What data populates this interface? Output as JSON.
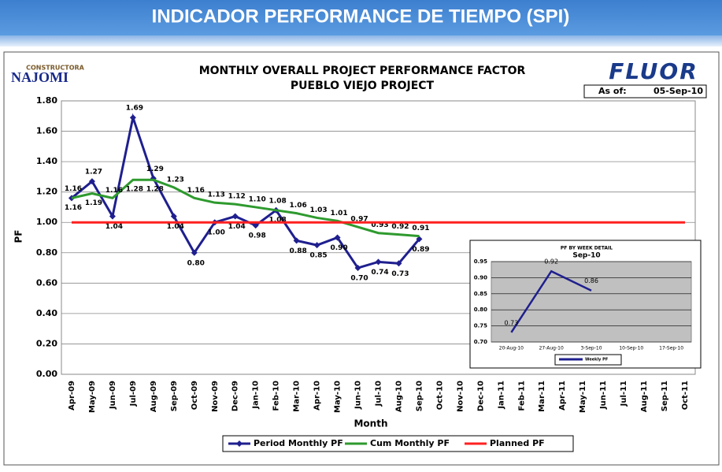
{
  "header": {
    "title": "INDICADOR PERFORMANCE DE TIEMPO (SPI)"
  },
  "branding": {
    "left_logo_top": "CONSTRUCTORA",
    "left_logo": "NAJOMI",
    "right_logo": "FLUOR",
    "as_of_label": "As of:",
    "as_of_date": "05-Sep-10"
  },
  "chart_data": [
    {
      "type": "line",
      "title": "MONTHLY OVERALL PROJECT PERFORMANCE FACTOR",
      "subtitle": "PUEBLO VIEJO PROJECT",
      "x_label": "Month",
      "y_label": "PF",
      "categories": [
        "Apr-09",
        "May-09",
        "Jun-09",
        "Jul-09",
        "Aug-09",
        "Sep-09",
        "Oct-09",
        "Nov-09",
        "Dec-09",
        "Jan-10",
        "Feb-10",
        "Mar-10",
        "Apr-10",
        "May-10",
        "Jun-10",
        "Jul-10",
        "Aug-10",
        "Sep-10",
        "Oct-10",
        "Nov-10",
        "Dec-10",
        "Jan-11",
        "Feb-11",
        "Mar-11",
        "Apr-11",
        "May-11",
        "Jun-11",
        "Jul-11",
        "Aug-11",
        "Sep-11",
        "Oct-11"
      ],
      "series": [
        {
          "name": "Period Monthly PF",
          "color": "#1f1f8f",
          "marker": true,
          "values": [
            1.16,
            1.27,
            1.04,
            1.69,
            1.29,
            1.04,
            0.8,
            1.0,
            1.04,
            0.98,
            1.08,
            0.88,
            0.85,
            0.9,
            0.7,
            0.74,
            0.73,
            0.89,
            null,
            null,
            null,
            null,
            null,
            null,
            null,
            null,
            null,
            null,
            null,
            null,
            null
          ],
          "value_labels": [
            "1.16",
            "1.27",
            "1.04",
            "1.69",
            "1.29",
            "1.04",
            "0.80",
            "1.00",
            "1.04",
            "0.98",
            "1.08",
            "0.88",
            "0.85",
            "0.90",
            "0.70",
            "0.74",
            "0.73",
            "0.89",
            null,
            null,
            null,
            null,
            null,
            null,
            null,
            null,
            null,
            null,
            null,
            null,
            null
          ]
        },
        {
          "name": "Cum Monthly PF",
          "color": "#2e9a2e",
          "marker": false,
          "values": [
            1.16,
            1.19,
            1.16,
            1.28,
            1.28,
            1.23,
            1.16,
            1.13,
            1.12,
            1.1,
            1.08,
            1.06,
            1.03,
            1.01,
            0.97,
            0.93,
            0.92,
            0.91,
            null,
            null,
            null,
            null,
            null,
            null,
            null,
            null,
            null,
            null,
            null,
            null,
            null
          ],
          "value_labels": [
            "1.16",
            "1.19",
            "1.16",
            "1.28",
            "1.28",
            "1.23",
            "1.16",
            "1.13",
            "1.12",
            "1.10",
            "1.08",
            "1.06",
            "1.03",
            "1.01",
            "0.97",
            "0.93",
            "0.92",
            "0.91",
            null,
            null,
            null,
            null,
            null,
            null,
            null,
            null,
            null,
            null,
            null,
            null,
            null
          ]
        },
        {
          "name": "Planned PF",
          "color": "#ff2020",
          "marker": false,
          "values": [
            1,
            1,
            1,
            1,
            1,
            1,
            1,
            1,
            1,
            1,
            1,
            1,
            1,
            1,
            1,
            1,
            1,
            1,
            1,
            1,
            1,
            1,
            1,
            1,
            1,
            1,
            1,
            1,
            1,
            1,
            1
          ]
        }
      ],
      "ylim": [
        0,
        1.8
      ],
      "yticks": [
        {
          "value": 0,
          "label": "0.00"
        },
        {
          "value": 0.2,
          "label": "0.20"
        },
        {
          "value": 0.4,
          "label": "0.40"
        },
        {
          "value": 0.6,
          "label": "0.60"
        },
        {
          "value": 0.8,
          "label": "0.80"
        },
        {
          "value": 1,
          "label": "1.00"
        },
        {
          "value": 1.2,
          "label": "1.20"
        },
        {
          "value": 1.4,
          "label": "1.40"
        },
        {
          "value": 1.6,
          "label": "1.60"
        },
        {
          "value": 1.8,
          "label": "1.80"
        }
      ],
      "grid": true,
      "legend": "bottom"
    },
    {
      "type": "line",
      "title": "PF BY WEEK DETAIL",
      "subtitle": "Sep-10",
      "categories": [
        "20-Aug-10",
        "27-Aug-10",
        "3-Sep-10",
        "10-Sep-10",
        "17-Sep-10"
      ],
      "series": [
        {
          "name": "Weekly PF",
          "color": "#1f1f8f",
          "values": [
            0.73,
            0.92,
            0.86,
            null,
            null
          ],
          "value_labels": [
            "0.73",
            "0.92",
            "0.86",
            null,
            null
          ]
        }
      ],
      "ylim": [
        0.7,
        0.95
      ],
      "yticks": [
        {
          "value": 0.7,
          "label": "0.70"
        },
        {
          "value": 0.75,
          "label": "0.75"
        },
        {
          "value": 0.8,
          "label": "0.80"
        },
        {
          "value": 0.85,
          "label": "0.85"
        },
        {
          "value": 0.9,
          "label": "0.90"
        },
        {
          "value": 0.95,
          "label": "0.95"
        }
      ],
      "grid": true,
      "legend": "bottom-right"
    }
  ]
}
